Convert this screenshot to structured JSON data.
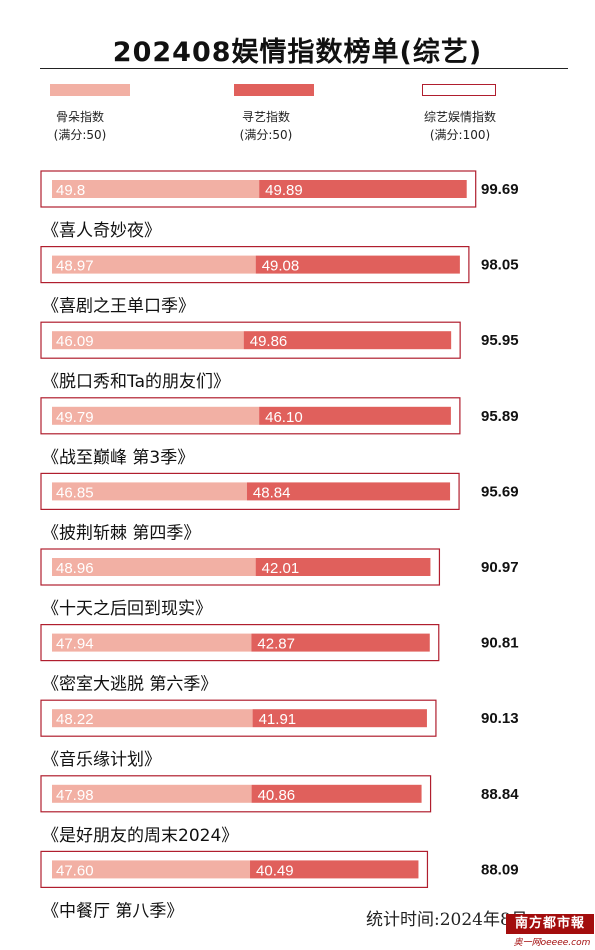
{
  "title": "202408娱情指数榜单(综艺)",
  "legend": [
    {
      "label": "骨朵指数",
      "sub": "(满分:50)"
    },
    {
      "label": "寻艺指数",
      "sub": "(满分:50)"
    },
    {
      "label": "综艺娱情指数",
      "sub": "(满分:100)"
    }
  ],
  "colors": {
    "gudong": "#f2b0a4",
    "xunyi": "#e0605c",
    "frame": "#b01e2e"
  },
  "chart_data": {
    "type": "bar",
    "stacked": true,
    "orientation": "horizontal",
    "title": "202408娱情指数榜单(综艺)",
    "categories": [
      "《喜人奇妙夜》",
      "《喜剧之王单口季》",
      "《脱口秀和Ta的朋友们》",
      "《战至巅峰  第3季》",
      "《披荆斩棘  第四季》",
      "《十天之后回到现实》",
      "《密室大逃脱  第六季》",
      "《音乐缘计划》",
      "《是好朋友的周末2024》",
      "《中餐厅  第八季》"
    ],
    "series": [
      {
        "name": "骨朵指数",
        "values": [
          "49.8",
          "48.97",
          "46.09",
          "49.79",
          "46.85",
          "48.96",
          "47.94",
          "48.22",
          "47.98",
          "47.60"
        ]
      },
      {
        "name": "寻艺指数",
        "values": [
          "49.89",
          "49.08",
          "49.86",
          "46.10",
          "48.84",
          "42.01",
          "42.87",
          "41.91",
          "40.86",
          "40.49"
        ]
      },
      {
        "name": "综艺娱情指数",
        "values": [
          "99.69",
          "98.05",
          "95.95",
          "95.89",
          "95.69",
          "90.97",
          "90.81",
          "90.13",
          "88.84",
          "88.09"
        ]
      }
    ]
  },
  "footer": "统计时间:2024年8月",
  "logo": {
    "text": "南方都市報",
    "sub": "奥一网oeeee.com"
  }
}
